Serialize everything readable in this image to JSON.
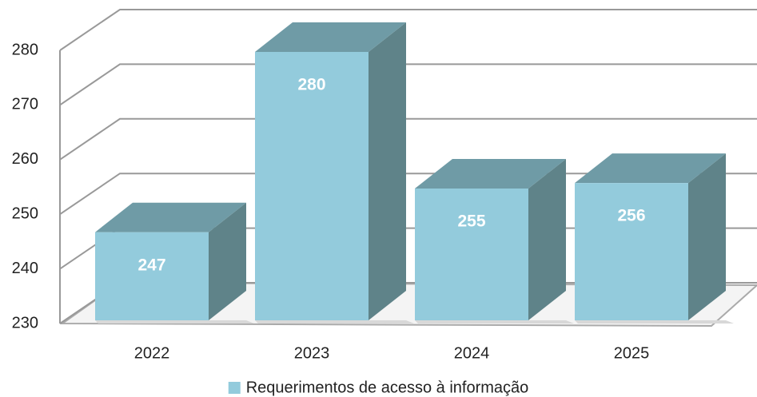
{
  "chart_data": {
    "type": "bar3d",
    "categories": [
      "2022",
      "2023",
      "2024",
      "2025"
    ],
    "series": [
      {
        "name": "Requerimentos de acesso à informação",
        "color": "#93cbdc",
        "values": [
          247,
          280,
          255,
          256
        ]
      }
    ],
    "ylim": [
      230,
      280
    ],
    "yticks": [
      230,
      240,
      250,
      260,
      270,
      280
    ],
    "grid": true,
    "legend": "bottom"
  }
}
